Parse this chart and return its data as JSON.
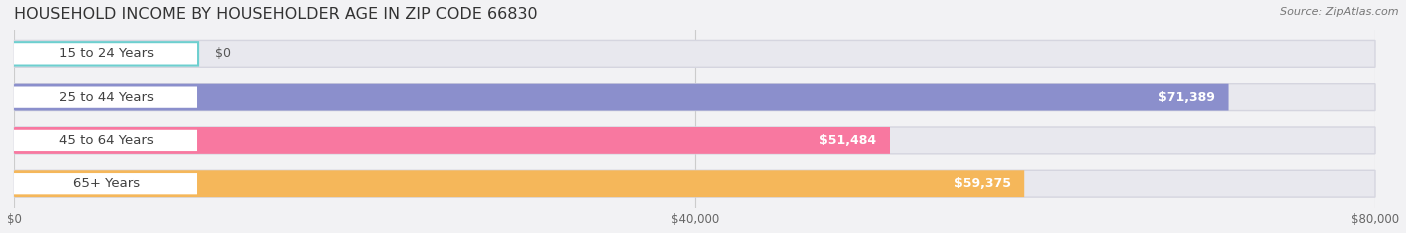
{
  "title": "HOUSEHOLD INCOME BY HOUSEHOLDER AGE IN ZIP CODE 66830",
  "source": "Source: ZipAtlas.com",
  "categories": [
    "15 to 24 Years",
    "25 to 44 Years",
    "45 to 64 Years",
    "65+ Years"
  ],
  "values": [
    0,
    71389,
    51484,
    59375
  ],
  "bar_colors": [
    "#6dcfcf",
    "#8b8fcc",
    "#f878a0",
    "#f5b75a"
  ],
  "value_labels": [
    "$0",
    "$71,389",
    "$51,484",
    "$59,375"
  ],
  "xlim": [
    0,
    80000
  ],
  "xtick_labels": [
    "$0",
    "$40,000",
    "$80,000"
  ],
  "xtick_values": [
    0,
    40000,
    80000
  ],
  "bar_height": 0.62,
  "figsize": [
    14.06,
    2.33
  ],
  "dpi": 100,
  "background_color": "#f2f2f4",
  "bar_bg_color": "#e8e8ee",
  "bar_bg_edge_color": "#d5d5df",
  "title_fontsize": 11.5,
  "source_fontsize": 8,
  "label_fontsize": 9.5,
  "value_fontsize": 9
}
